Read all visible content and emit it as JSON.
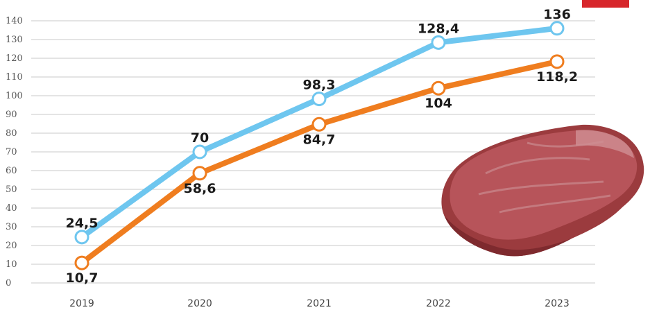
{
  "chart_data": {
    "type": "line",
    "x": [
      "2019",
      "2020",
      "2021",
      "2022",
      "2023"
    ],
    "ylim": [
      0,
      140
    ],
    "yticks": [
      0,
      10,
      20,
      30,
      40,
      50,
      60,
      70,
      80,
      90,
      100,
      110,
      120,
      130,
      140
    ],
    "grid": true,
    "series": [
      {
        "color": "#6ec6ef",
        "values": [
          24.5,
          70,
          98.3,
          128.4,
          136
        ],
        "labels": [
          "24,5",
          "70",
          "98,3",
          "128,4",
          "136"
        ],
        "label_position": "above"
      },
      {
        "color": "#ef7d1f",
        "values": [
          10.7,
          58.6,
          84.7,
          104,
          118.2
        ],
        "labels": [
          "10,7",
          "58,6",
          "84,7",
          "104",
          "118,2"
        ],
        "label_position": "below"
      }
    ]
  },
  "illustration": {
    "icon": "raw-meat-steak"
  },
  "accent_color": "#d7262b"
}
